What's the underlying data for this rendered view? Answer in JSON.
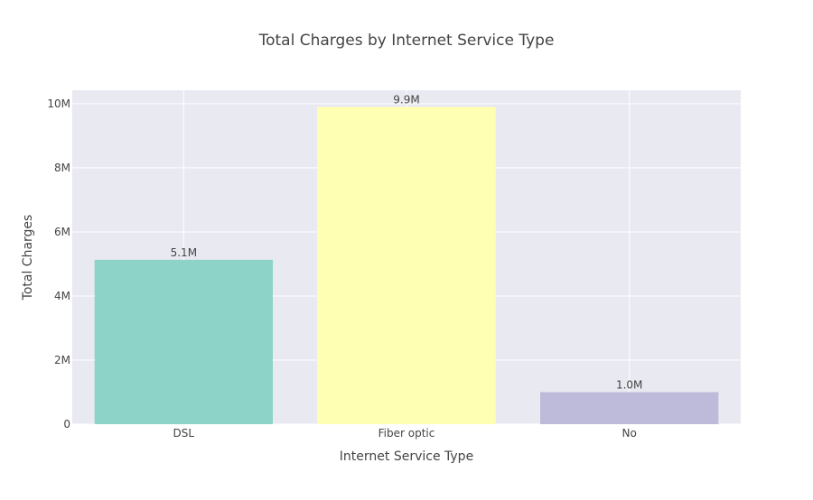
{
  "chart_data": {
    "type": "bar",
    "title": "Total Charges by Internet Service Type",
    "xlabel": "Internet Service Type",
    "ylabel": "Total Charges",
    "categories": [
      "DSL",
      "Fiber optic",
      "No"
    ],
    "values": [
      5130000,
      9900000,
      1000000
    ],
    "data_labels": [
      "5.1M",
      "9.9M",
      "1.0M"
    ],
    "bar_colors": [
      "#8dd3c7",
      "#ffffb3",
      "#bebada"
    ],
    "ylim": [
      0,
      10420000
    ],
    "y_ticks": [
      {
        "value": 0,
        "label": "0"
      },
      {
        "value": 2000000,
        "label": "2M"
      },
      {
        "value": 4000000,
        "label": "4M"
      },
      {
        "value": 6000000,
        "label": "6M"
      },
      {
        "value": 8000000,
        "label": "8M"
      },
      {
        "value": 10000000,
        "label": "10M"
      }
    ],
    "grid": true,
    "plot_background": "#e9e9f2",
    "grid_color": "#ffffff",
    "text_color": "#444444"
  }
}
